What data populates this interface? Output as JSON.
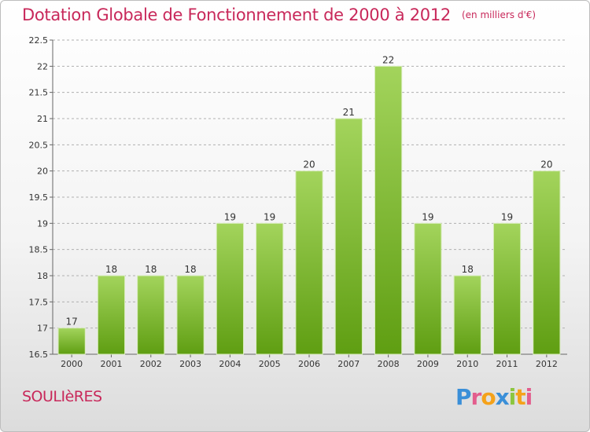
{
  "header": {
    "title": "Dotation Globale de Fonctionnement de 2000 à 2012",
    "subtitle": "(en milliers d'€)"
  },
  "footer": {
    "commune": "SOULIèRES",
    "logo": "Proxiti",
    "logo_letters": [
      "P",
      "r",
      "o",
      "x",
      "i",
      "t",
      "i"
    ]
  },
  "colors": {
    "title": "#c8285a",
    "bar_top": "#a3d45c",
    "bar_bottom": "#5f9e12",
    "grid": "#b0b0b0"
  },
  "chart_data": {
    "type": "bar",
    "categories": [
      "2000",
      "2001",
      "2002",
      "2003",
      "2004",
      "2005",
      "2006",
      "2007",
      "2008",
      "2009",
      "2010",
      "2011",
      "2012"
    ],
    "values": [
      17,
      18,
      18,
      18,
      19,
      19,
      20,
      21,
      22,
      19,
      18,
      19,
      20
    ],
    "data_labels": [
      "17",
      "18",
      "18",
      "18",
      "19",
      "19",
      "20",
      "21",
      "22",
      "19",
      "18",
      "19",
      "20"
    ],
    "ylim": [
      16.5,
      22.5
    ],
    "yticks": [
      "16.5",
      "17",
      "17.5",
      "18",
      "18.5",
      "19",
      "19.5",
      "20",
      "20.5",
      "21",
      "21.5",
      "22",
      "22.5"
    ],
    "ytick_values": [
      16.5,
      17,
      17.5,
      18,
      18.5,
      19,
      19.5,
      20,
      20.5,
      21,
      21.5,
      22,
      22.5
    ],
    "grid": true,
    "xlabel": "",
    "ylabel": ""
  }
}
